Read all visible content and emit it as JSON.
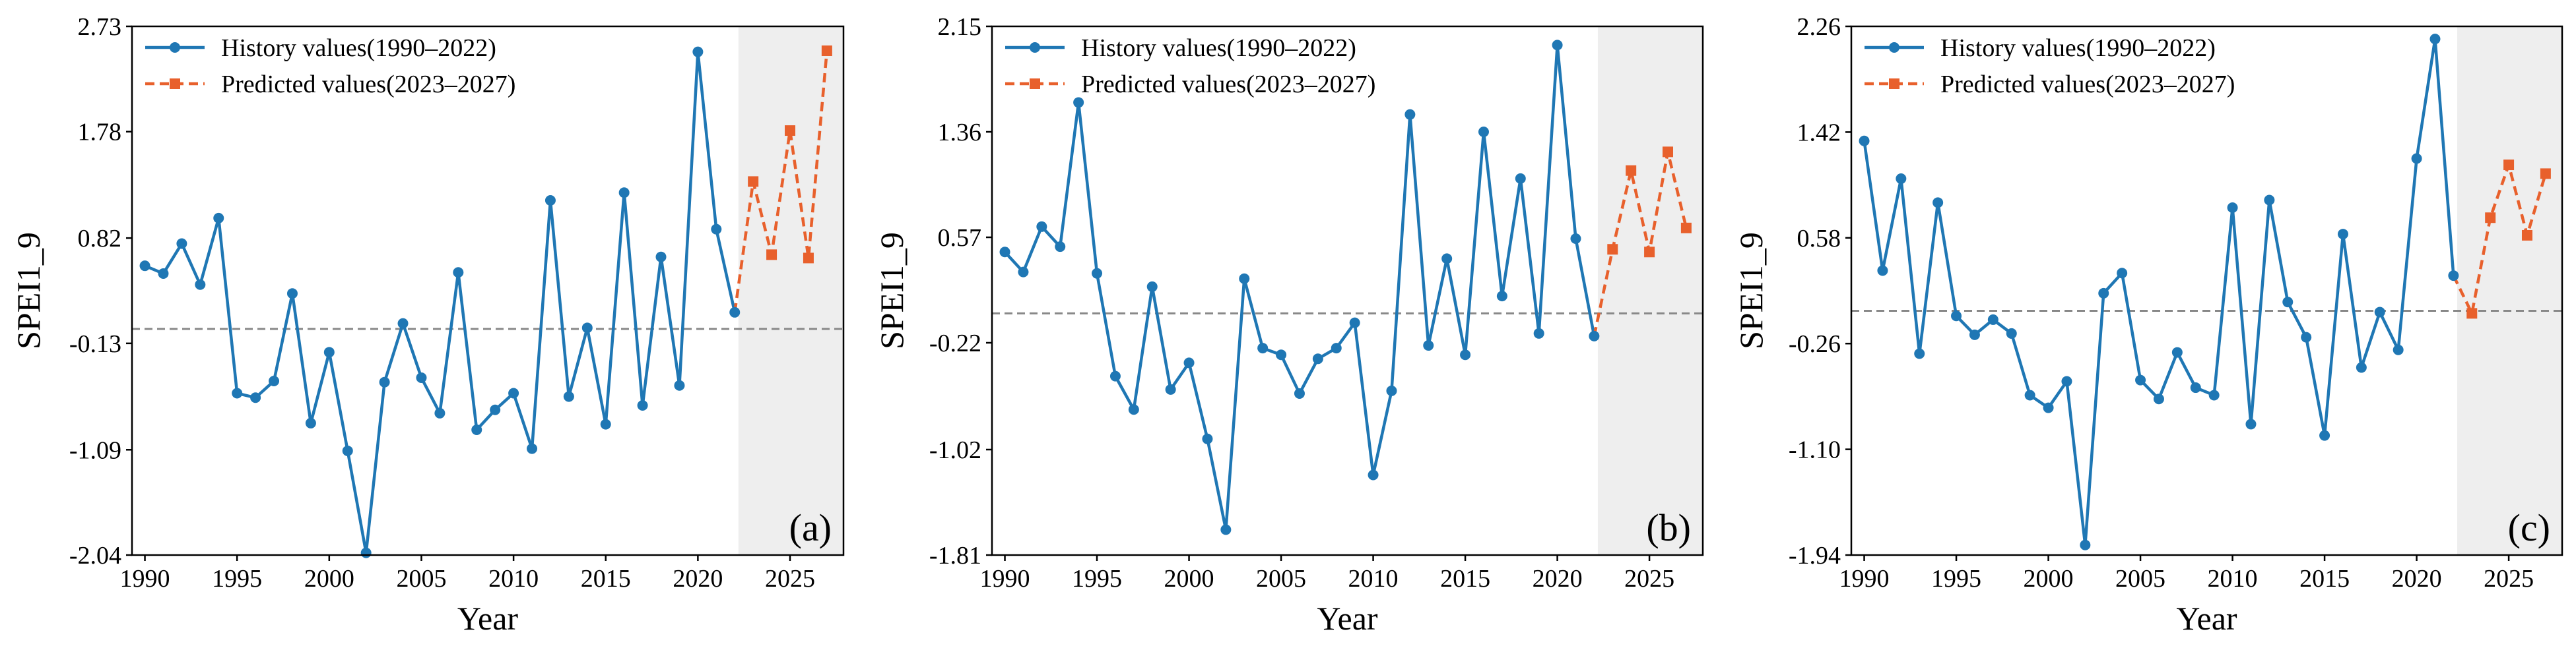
{
  "colors": {
    "history": "#1f77b4",
    "predicted": "#e8602c",
    "shade": "#eeeeee",
    "zero_line": "#888888"
  },
  "chart_data": [
    {
      "type": "line",
      "panel_label": "(a)",
      "xlabel": "Year",
      "ylabel": "SPEI1_9",
      "ylim": [
        -2.04,
        2.73
      ],
      "yticks": [
        -2.04,
        -1.09,
        -0.13,
        0.82,
        1.78,
        2.73
      ],
      "ytick_labels": [
        "-2.04",
        "-1.09",
        "-0.13",
        "0.82",
        "1.78",
        "2.73"
      ],
      "xlim": [
        1989.3,
        2027.9
      ],
      "xticks": [
        1990,
        1995,
        2000,
        2005,
        2010,
        2015,
        2020,
        2025
      ],
      "xtick_labels": [
        "1990",
        "1995",
        "2000",
        "2005",
        "2010",
        "2015",
        "2020",
        "2025"
      ],
      "shade_from": 2022.2,
      "zero_line": 0,
      "series": [
        {
          "name": "History values(1990–2022)",
          "style": "solid-circle",
          "x": [
            1990,
            1991,
            1992,
            1993,
            1994,
            1995,
            1996,
            1997,
            1998,
            1999,
            2000,
            2001,
            2002,
            2003,
            2004,
            2005,
            2006,
            2007,
            2008,
            2009,
            2010,
            2011,
            2012,
            2013,
            2014,
            2015,
            2016,
            2017,
            2018,
            2019,
            2020,
            2021,
            2022
          ],
          "values": [
            0.57,
            0.5,
            0.77,
            0.4,
            1.0,
            -0.58,
            -0.62,
            -0.47,
            0.32,
            -0.85,
            -0.21,
            -1.1,
            -2.02,
            -0.48,
            0.05,
            -0.44,
            -0.76,
            0.51,
            -0.91,
            -0.73,
            -0.58,
            -1.08,
            1.16,
            -0.61,
            0.01,
            -0.86,
            1.23,
            -0.69,
            0.65,
            -0.51,
            2.5,
            0.9,
            0.15
          ]
        },
        {
          "name": "Predicted values(2023–2027)",
          "style": "dashed-square",
          "x": [
            2022,
            2023,
            2024,
            2025,
            2026,
            2027
          ],
          "values": [
            0.15,
            1.33,
            0.67,
            1.79,
            0.64,
            2.51
          ]
        }
      ]
    },
    {
      "type": "line",
      "panel_label": "(b)",
      "xlabel": "Year",
      "ylabel": "SPEI1_9",
      "ylim": [
        -1.81,
        2.15
      ],
      "yticks": [
        -1.81,
        -1.02,
        -0.22,
        0.57,
        1.36,
        2.15
      ],
      "ytick_labels": [
        "-1.81",
        "-1.02",
        "-0.22",
        "0.57",
        "1.36",
        "2.15"
      ],
      "xlim": [
        1989.3,
        2027.9
      ],
      "xticks": [
        1990,
        1995,
        2000,
        2005,
        2010,
        2015,
        2020,
        2025
      ],
      "xtick_labels": [
        "1990",
        "1995",
        "2000",
        "2005",
        "2010",
        "2015",
        "2020",
        "2025"
      ],
      "shade_from": 2022.2,
      "zero_line": 0,
      "series": [
        {
          "name": "History values(1990–2022)",
          "style": "solid-circle",
          "x": [
            1990,
            1991,
            1992,
            1993,
            1994,
            1995,
            1996,
            1997,
            1998,
            1999,
            2000,
            2001,
            2002,
            2003,
            2004,
            2005,
            2006,
            2007,
            2008,
            2009,
            2010,
            2011,
            2012,
            2013,
            2014,
            2015,
            2016,
            2017,
            2018,
            2019,
            2020,
            2021,
            2022
          ],
          "values": [
            0.46,
            0.31,
            0.65,
            0.5,
            1.58,
            0.3,
            -0.47,
            -0.72,
            0.2,
            -0.57,
            -0.37,
            -0.94,
            -1.62,
            0.26,
            -0.26,
            -0.31,
            -0.6,
            -0.34,
            -0.26,
            -0.07,
            -1.21,
            -0.58,
            1.49,
            -0.24,
            0.41,
            -0.31,
            1.36,
            0.13,
            1.01,
            -0.15,
            2.01,
            0.56,
            -0.17
          ]
        },
        {
          "name": "Predicted values(2023–2027)",
          "style": "dashed-square",
          "x": [
            2022,
            2023,
            2024,
            2025,
            2026,
            2027
          ],
          "values": [
            -0.17,
            0.48,
            1.07,
            0.46,
            1.21,
            0.64
          ]
        }
      ]
    },
    {
      "type": "line",
      "panel_label": "(c)",
      "xlabel": "Year",
      "ylabel": "SPEI1_9",
      "ylim": [
        -1.94,
        2.26
      ],
      "yticks": [
        -1.94,
        -1.1,
        -0.26,
        0.58,
        1.42,
        2.26
      ],
      "ytick_labels": [
        "-1.94",
        "-1.10",
        "-0.26",
        "0.58",
        "1.42",
        "2.26"
      ],
      "xlim": [
        1989.3,
        2027.9
      ],
      "xticks": [
        1990,
        1995,
        2000,
        2005,
        2010,
        2015,
        2020,
        2025
      ],
      "xtick_labels": [
        "1990",
        "1995",
        "2000",
        "2005",
        "2010",
        "2015",
        "2020",
        "2025"
      ],
      "shade_from": 2022.2,
      "zero_line": 0,
      "series": [
        {
          "name": "History values(1990–2022)",
          "style": "solid-circle",
          "x": [
            1990,
            1991,
            1992,
            1993,
            1994,
            1995,
            1996,
            1997,
            1998,
            1999,
            2000,
            2001,
            2002,
            2003,
            2004,
            2005,
            2006,
            2007,
            2008,
            2009,
            2010,
            2011,
            2012,
            2013,
            2014,
            2015,
            2016,
            2017,
            2018,
            2019,
            2020,
            2021,
            2022
          ],
          "values": [
            1.35,
            0.32,
            1.05,
            -0.34,
            0.86,
            -0.04,
            -0.19,
            -0.07,
            -0.18,
            -0.67,
            -0.77,
            -0.56,
            -1.86,
            0.14,
            0.3,
            -0.55,
            -0.7,
            -0.33,
            -0.61,
            -0.67,
            0.82,
            -0.9,
            0.88,
            0.07,
            -0.21,
            -0.99,
            0.61,
            -0.45,
            -0.01,
            -0.31,
            1.21,
            2.16,
            0.28
          ]
        },
        {
          "name": "Predicted values(2023–2027)",
          "style": "dashed-square",
          "x": [
            2022,
            2023,
            2024,
            2025,
            2026,
            2027
          ],
          "values": [
            0.28,
            -0.02,
            0.74,
            1.16,
            0.6,
            1.09
          ]
        }
      ]
    }
  ]
}
